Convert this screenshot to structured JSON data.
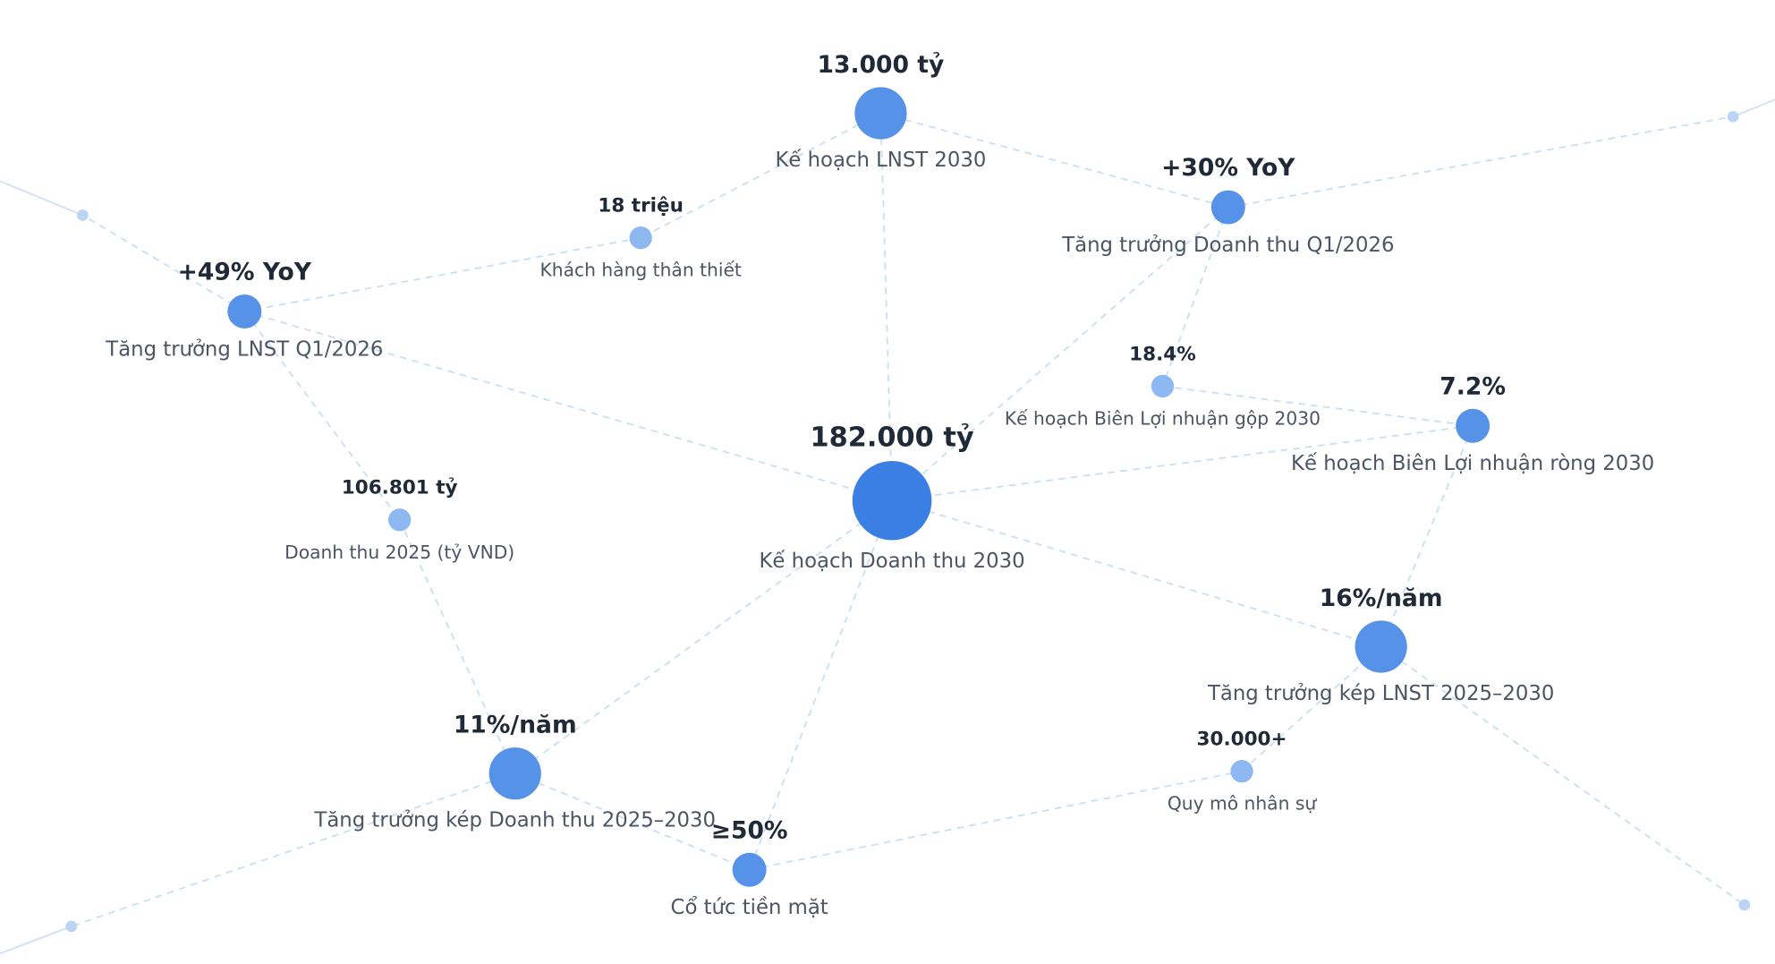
{
  "nodes": [
    {
      "value": "13.000 tỷ",
      "label": "Kế hoạch LNST 2030"
    },
    {
      "value": "+30% YoY",
      "label": "Tăng trưởng Doanh thu Q1/2026"
    },
    {
      "value": "18 triệu",
      "label": "Khách hàng thân thiết"
    },
    {
      "value": "+49% YoY",
      "label": "Tăng trưởng LNST Q1/2026"
    },
    {
      "value": "18.4%",
      "label": "Kế hoạch Biên Lợi nhuận gộp 2030"
    },
    {
      "value": "7.2%",
      "label": "Kế hoạch Biên Lợi nhuận ròng 2030"
    },
    {
      "value": "182.000 tỷ",
      "label": "Kế hoạch Doanh thu 2030"
    },
    {
      "value": "106.801 tỷ",
      "label": "Doanh thu 2025 (tỷ VND)"
    },
    {
      "value": "16%/năm",
      "label": "Tăng trưởng kép LNST 2025–2030"
    },
    {
      "value": "30.000+",
      "label": "Quy mô nhân sự"
    },
    {
      "value": "11%/năm",
      "label": "Tăng trưởng kép Doanh thu 2025–2030"
    },
    {
      "value": "≥50%",
      "label": "Cổ tức tiền mặt"
    }
  ]
}
